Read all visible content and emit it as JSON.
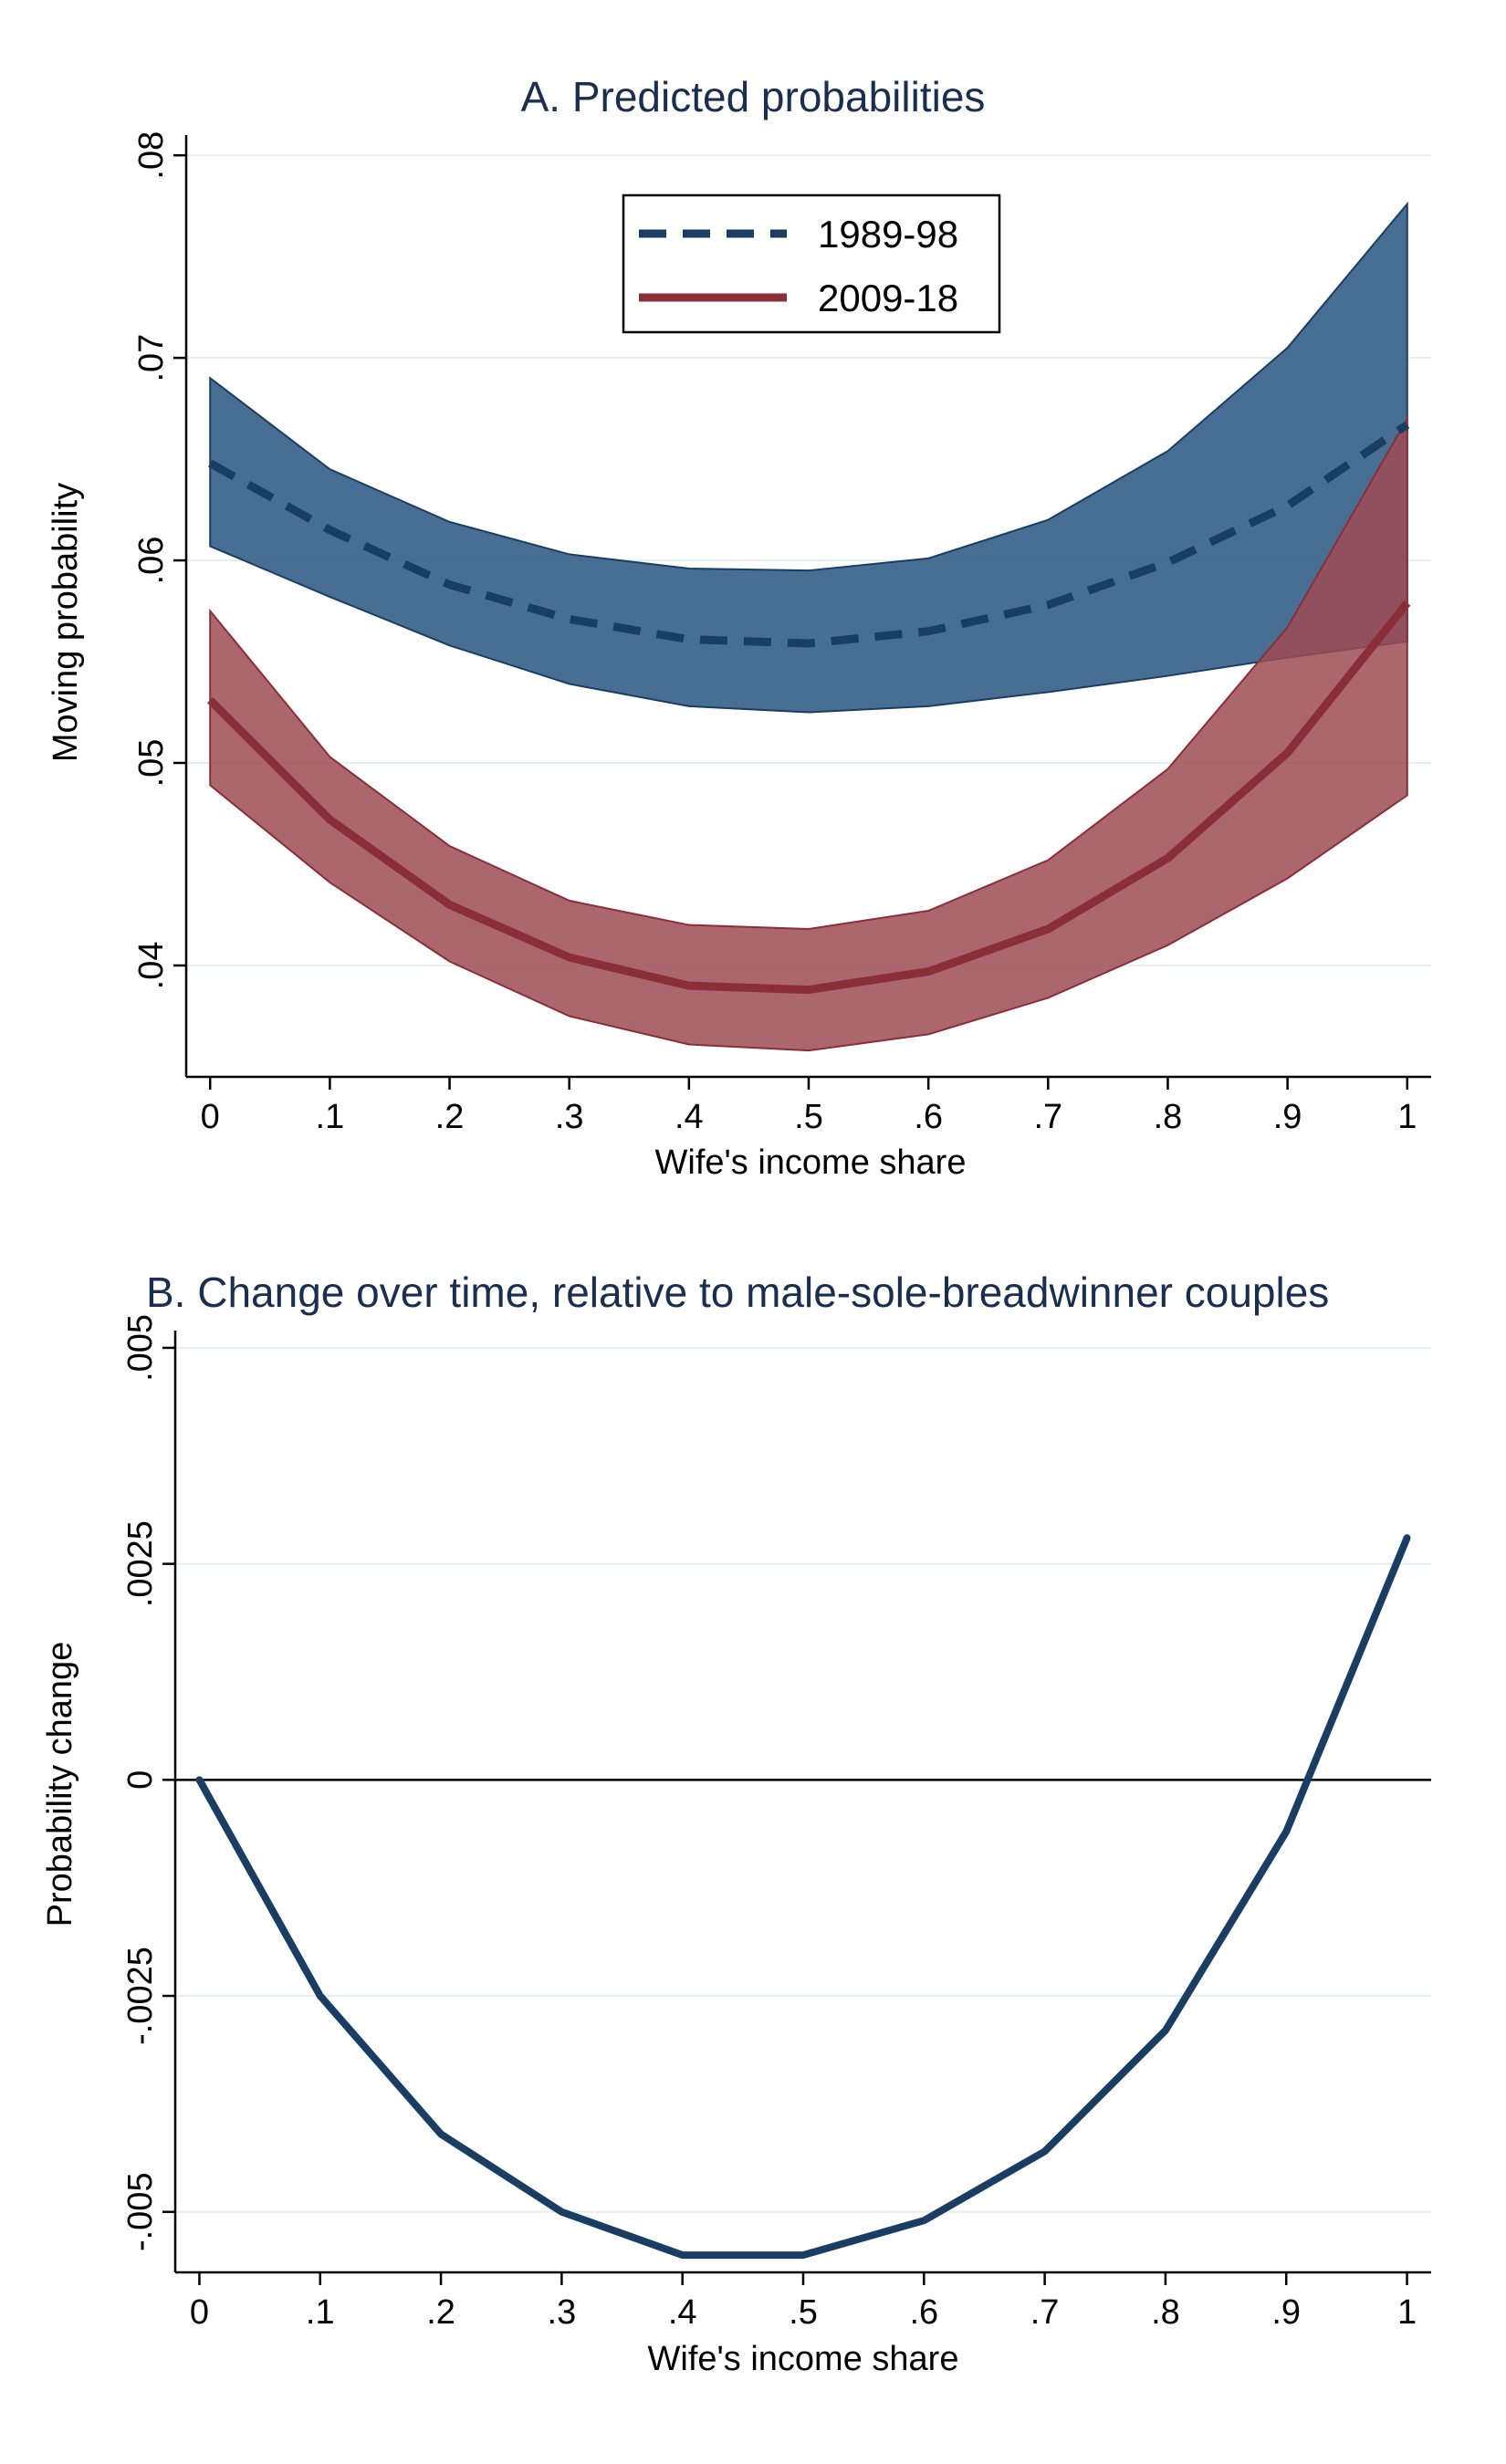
{
  "colors": {
    "series_1989": "#1a3d63",
    "band_1989": "#2f5a85",
    "series_2009": "#8a2e37",
    "band_2009": "#9e4b53",
    "gridline": "#e4eeee",
    "title": "#1a2f4f",
    "change_line": "#1a3d63"
  },
  "chart_data": [
    {
      "type": "line",
      "title": "A. Predicted probabilities",
      "xlabel": "Wife's income share",
      "ylabel": "Moving probability",
      "x": [
        0,
        0.1,
        0.2,
        0.3,
        0.4,
        0.5,
        0.6,
        0.7,
        0.8,
        0.9,
        1
      ],
      "xtick_labels": [
        "0",
        ".1",
        ".2",
        ".3",
        ".4",
        ".5",
        ".6",
        ".7",
        ".8",
        ".9",
        "1"
      ],
      "yticks": [
        0.04,
        0.05,
        0.06,
        0.07,
        0.08
      ],
      "ytick_labels": [
        ".04",
        ".05",
        ".06",
        ".07",
        ".08"
      ],
      "xlim": [
        -0.02,
        1.02
      ],
      "ylim": [
        0.0345,
        0.081
      ],
      "grid": true,
      "legend_position": "top-center",
      "series": [
        {
          "name": "1989-98",
          "style": "dashed",
          "values": [
            0.0648,
            0.0615,
            0.0588,
            0.0571,
            0.0561,
            0.0559,
            0.0565,
            0.0578,
            0.0599,
            0.0627,
            0.0667
          ],
          "lower": [
            0.0607,
            0.0582,
            0.0558,
            0.0539,
            0.0528,
            0.0525,
            0.0528,
            0.0535,
            0.0543,
            0.0552,
            0.056
          ],
          "upper": [
            0.069,
            0.0645,
            0.0619,
            0.0603,
            0.0596,
            0.0595,
            0.0601,
            0.062,
            0.0654,
            0.0705,
            0.0776
          ]
        },
        {
          "name": "2009-18",
          "style": "solid",
          "values": [
            0.0531,
            0.0472,
            0.043,
            0.0404,
            0.039,
            0.0388,
            0.0397,
            0.0418,
            0.0453,
            0.0505,
            0.0579
          ],
          "lower": [
            0.0489,
            0.0441,
            0.0402,
            0.0375,
            0.0361,
            0.0358,
            0.0366,
            0.0384,
            0.041,
            0.0443,
            0.0484
          ],
          "upper": [
            0.0575,
            0.0503,
            0.0459,
            0.0432,
            0.042,
            0.0418,
            0.0427,
            0.0452,
            0.0497,
            0.0567,
            0.067
          ]
        }
      ]
    },
    {
      "type": "line",
      "title": "B. Change over time, relative to male-sole-breadwinner couples",
      "xlabel": "Wife's income share",
      "ylabel": "Probability change",
      "x": [
        0,
        0.1,
        0.2,
        0.3,
        0.4,
        0.5,
        0.6,
        0.7,
        0.8,
        0.9,
        1
      ],
      "xtick_labels": [
        "0",
        ".1",
        ".2",
        ".3",
        ".4",
        ".5",
        ".6",
        ".7",
        ".8",
        ".9",
        "1"
      ],
      "yticks": [
        -0.005,
        -0.0025,
        0,
        0.0025,
        0.005
      ],
      "ytick_labels": [
        "-.005",
        "-.0025",
        "0",
        ".0025",
        ".005"
      ],
      "xlim": [
        -0.02,
        1.02
      ],
      "ylim": [
        -0.0057,
        0.0052
      ],
      "grid": true,
      "reference_line_y": 0,
      "series": [
        {
          "name": "Probability change",
          "values": [
            0,
            -0.0025,
            -0.0041,
            -0.005,
            -0.0055,
            -0.0055,
            -0.0051,
            -0.0043,
            -0.0029,
            -0.0006,
            0.0028
          ]
        }
      ]
    }
  ]
}
